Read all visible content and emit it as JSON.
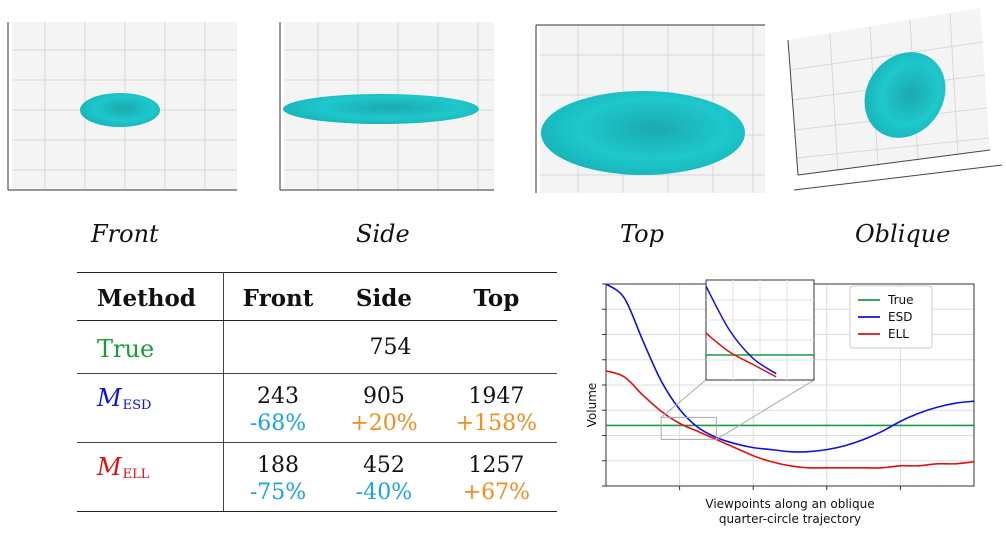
{
  "views": [
    {
      "key": "front",
      "caption": "Front"
    },
    {
      "key": "side",
      "caption": "Side"
    },
    {
      "key": "top",
      "caption": "Top"
    },
    {
      "key": "oblique",
      "caption": "Oblique"
    }
  ],
  "colors": {
    "true": "#1a9c3c",
    "esd": "#1010e0",
    "ell": "#e01010",
    "negative": "#1aa3e0",
    "positive": "#f28c1c",
    "ellipsoid": "#1ec8cc"
  },
  "table": {
    "headers": [
      "Method",
      "Front",
      "Side",
      "Top"
    ],
    "true_row": {
      "label": "True",
      "value": "754"
    },
    "esd_row": {
      "label_main": "M",
      "label_sub": "ESD",
      "values": [
        "243",
        "905",
        "1947"
      ],
      "pcts": [
        "-68%",
        "+20%",
        "+158%"
      ]
    },
    "ell_row": {
      "label_main": "M",
      "label_sub": "ELL",
      "values": [
        "188",
        "452",
        "1257"
      ],
      "pcts": [
        "-75%",
        "-40%",
        "+67%"
      ]
    }
  },
  "chart_data": {
    "type": "line",
    "xlabel": "Viewpoints along an oblique\nquarter-circle trajectory",
    "xlabel_lines": [
      "Viewpoints along an oblique",
      "quarter-circle trajectory"
    ],
    "ylabel": "Volume",
    "legend_position": "top-right",
    "grid": true,
    "x": [
      0,
      0.05,
      0.1,
      0.15,
      0.2,
      0.25,
      0.3,
      0.35,
      0.4,
      0.45,
      0.5,
      0.55,
      0.6,
      0.65,
      0.7,
      0.75,
      0.8,
      0.85,
      0.9,
      0.95,
      1.0
    ],
    "series": [
      {
        "name": "True",
        "values": [
          0.3,
          0.3,
          0.3,
          0.3,
          0.3,
          0.3,
          0.3,
          0.3,
          0.3,
          0.3,
          0.3,
          0.3,
          0.3,
          0.3,
          0.3,
          0.3,
          0.3,
          0.3,
          0.3,
          0.3,
          0.3
        ]
      },
      {
        "name": "ESD",
        "values": [
          1.0,
          0.93,
          0.72,
          0.52,
          0.38,
          0.29,
          0.24,
          0.21,
          0.19,
          0.18,
          0.17,
          0.17,
          0.18,
          0.2,
          0.23,
          0.27,
          0.32,
          0.36,
          0.39,
          0.41,
          0.42
        ]
      },
      {
        "name": "ELL",
        "values": [
          0.57,
          0.54,
          0.45,
          0.37,
          0.31,
          0.27,
          0.23,
          0.19,
          0.15,
          0.12,
          0.1,
          0.09,
          0.09,
          0.09,
          0.09,
          0.09,
          0.1,
          0.1,
          0.11,
          0.11,
          0.12
        ]
      }
    ],
    "ylim": [
      0,
      1.0
    ],
    "inset": {
      "xlim": [
        0.15,
        0.3
      ],
      "series": [
        {
          "name": "True",
          "values": [
            0.3,
            0.3,
            0.3,
            0.3
          ]
        },
        {
          "name": "ESD",
          "values": [
            0.52,
            0.38,
            0.29,
            0.24
          ]
        },
        {
          "name": "ELL",
          "values": [
            0.37,
            0.31,
            0.27,
            0.23
          ]
        }
      ]
    }
  }
}
